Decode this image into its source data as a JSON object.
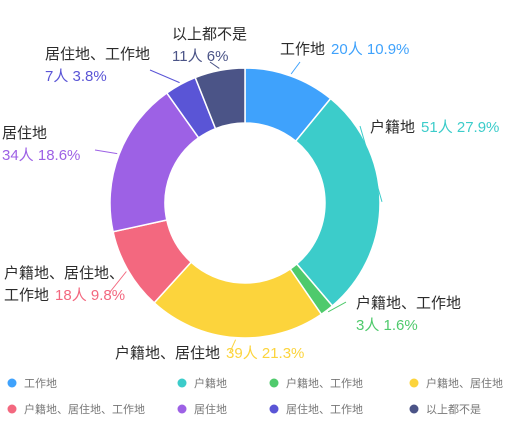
{
  "chart_data": {
    "type": "pie",
    "donut": true,
    "title": "",
    "legend_position": "bottom",
    "series": [
      {
        "name": "",
        "values": [
          20,
          51,
          3,
          39,
          18,
          34,
          7,
          11
        ]
      }
    ],
    "slices": [
      {
        "label": "工作地",
        "label_lines": [
          "工作地"
        ],
        "count_text": "20人",
        "percent_text": "10.9%",
        "value": 20,
        "percent": 10.9,
        "color": "#3fa2fc"
      },
      {
        "label": "户籍地",
        "label_lines": [
          "户籍地"
        ],
        "count_text": "51人",
        "percent_text": "27.9%",
        "value": 51,
        "percent": 27.9,
        "color": "#3cccca"
      },
      {
        "label": "户籍地、工作地",
        "label_lines": [
          "户籍地、工作地"
        ],
        "count_text": "3人",
        "percent_text": "1.6%",
        "value": 3,
        "percent": 1.6,
        "color": "#4fca6c"
      },
      {
        "label": "户籍地、居住地",
        "label_lines": [
          "户籍地、居住地"
        ],
        "count_text": "39人",
        "percent_text": "21.3%",
        "value": 39,
        "percent": 21.3,
        "color": "#fcd43c"
      },
      {
        "label": "户籍地、居住地、工作地",
        "label_lines": [
          "户籍地、居住地、",
          "工作地"
        ],
        "count_text": "18人",
        "percent_text": "9.8%",
        "value": 18,
        "percent": 9.8,
        "color": "#f3687f"
      },
      {
        "label": "居住地",
        "label_lines": [
          "居住地"
        ],
        "count_text": "34人",
        "percent_text": "18.6%",
        "value": 34,
        "percent": 18.6,
        "color": "#9d61e5"
      },
      {
        "label": "居住地、工作地",
        "label_lines": [
          "居住地、工作地"
        ],
        "count_text": "7人",
        "percent_text": "3.8%",
        "value": 7,
        "percent": 3.8,
        "color": "#5a55d6"
      },
      {
        "label": "以上都不是",
        "label_lines": [
          "以上都不是"
        ],
        "count_text": "11人",
        "percent_text": "6%",
        "value": 11,
        "percent": 6,
        "color": "#4b5487"
      }
    ]
  }
}
